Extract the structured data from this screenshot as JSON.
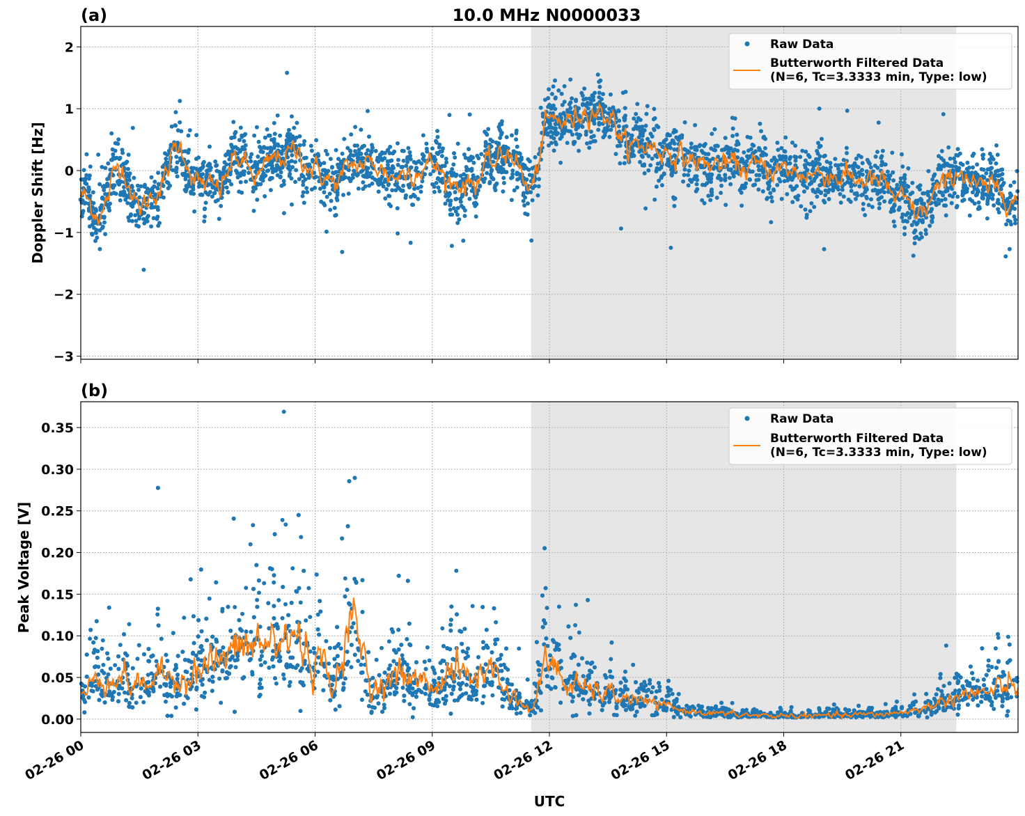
{
  "chart_data": [
    {
      "type": "scatter",
      "panel_label": "(a)",
      "title": "10.0 MHz N0000033",
      "xlabel": "",
      "ylabel": "Doppler Shift [Hz]",
      "xlim_hours": [
        0,
        24
      ],
      "ylim": [
        -3.05,
        2.33
      ],
      "yticks": [
        2,
        1,
        0,
        -1,
        -2,
        -3
      ],
      "ytick_labels": [
        "2",
        "1",
        "0",
        "−1",
        "−2",
        "−3"
      ],
      "grid": true,
      "legend": "top-right",
      "shaded_interval_hours": [
        11.53,
        22.42
      ],
      "series": [
        {
          "name": "Raw Data",
          "kind": "points",
          "color": "#1f77b4",
          "typical_spread": 0.22
        },
        {
          "name": "Butterworth Filtered Data\n(N=6, Tc=3.3333 min, Type: low)",
          "kind": "line",
          "color": "#ff7f0e",
          "x_hours": [
            0,
            0.5,
            1,
            1.5,
            2,
            2.5,
            3,
            3.5,
            4,
            4.5,
            5,
            5.5,
            6,
            6.5,
            7,
            7.5,
            8,
            8.5,
            9,
            9.5,
            10,
            10.5,
            11,
            11.5,
            12,
            12.5,
            13,
            13.5,
            14,
            14.5,
            15,
            15.5,
            16,
            16.5,
            17,
            17.5,
            18,
            18.5,
            19,
            19.5,
            20,
            20.5,
            21,
            21.5,
            22,
            22.5,
            23,
            23.5,
            24
          ],
          "values": [
            -0.4,
            -0.7,
            0.1,
            -0.6,
            -0.3,
            0.4,
            -0.2,
            -0.3,
            0.2,
            -0.1,
            0.2,
            0.3,
            0.0,
            -0.2,
            0.1,
            0.1,
            -0.1,
            0.0,
            0.1,
            -0.2,
            -0.2,
            0.1,
            0.3,
            -0.3,
            0.8,
            0.8,
            1.0,
            0.9,
            0.4,
            0.4,
            0.3,
            0.2,
            0.1,
            0.1,
            0.05,
            0.05,
            0.0,
            -0.05,
            -0.05,
            -0.1,
            -0.15,
            -0.2,
            -0.5,
            -0.7,
            -0.3,
            0.0,
            -0.3,
            -0.3,
            -0.5
          ]
        }
      ]
    },
    {
      "type": "scatter",
      "panel_label": "(b)",
      "xlabel": "UTC",
      "ylabel": "Peak Voltage [V]",
      "xlim_hours": [
        0,
        24
      ],
      "ylim": [
        -0.016,
        0.381
      ],
      "yticks": [
        0.35,
        0.3,
        0.25,
        0.2,
        0.15,
        0.1,
        0.05,
        0.0
      ],
      "ytick_labels": [
        "0.35",
        "0.30",
        "0.25",
        "0.20",
        "0.15",
        "0.10",
        "0.05",
        "0.00"
      ],
      "xticks_hours": [
        0,
        3,
        6,
        9,
        12,
        15,
        18,
        21
      ],
      "xtick_labels": [
        "02-26 00",
        "02-26 03",
        "02-26 06",
        "02-26 09",
        "02-26 12",
        "02-26 15",
        "02-26 18",
        "02-26 21"
      ],
      "grid": true,
      "legend": "top-right",
      "shaded_interval_hours": [
        11.53,
        22.42
      ],
      "series": [
        {
          "name": "Raw Data",
          "kind": "points",
          "color": "#1f77b4",
          "typical_relative_spread": 0.6
        },
        {
          "name": "Butterworth Filtered Data\n(N=6, Tc=3.3333 min, Type: low)",
          "kind": "line",
          "color": "#ff7f0e",
          "x_hours": [
            0,
            0.5,
            1,
            1.5,
            2,
            2.5,
            3,
            3.5,
            4,
            4.5,
            5,
            5.5,
            6,
            6.5,
            7,
            7.5,
            8,
            8.5,
            9,
            9.5,
            10,
            10.5,
            11,
            11.5,
            12,
            12.5,
            13,
            13.5,
            14,
            14.5,
            15,
            15.5,
            16,
            16.5,
            17,
            17.5,
            18,
            18.5,
            19,
            19.5,
            20,
            20.5,
            21,
            21.5,
            22,
            22.5,
            23,
            23.5,
            24
          ],
          "values": [
            0.03,
            0.05,
            0.05,
            0.04,
            0.05,
            0.05,
            0.06,
            0.07,
            0.08,
            0.09,
            0.09,
            0.1,
            0.07,
            0.05,
            0.11,
            0.04,
            0.05,
            0.05,
            0.04,
            0.06,
            0.05,
            0.06,
            0.03,
            0.012,
            0.07,
            0.04,
            0.035,
            0.03,
            0.025,
            0.02,
            0.015,
            0.01,
            0.008,
            0.006,
            0.005,
            0.004,
            0.004,
            0.004,
            0.004,
            0.004,
            0.005,
            0.006,
            0.008,
            0.012,
            0.02,
            0.03,
            0.03,
            0.035,
            0.04
          ]
        }
      ]
    }
  ]
}
